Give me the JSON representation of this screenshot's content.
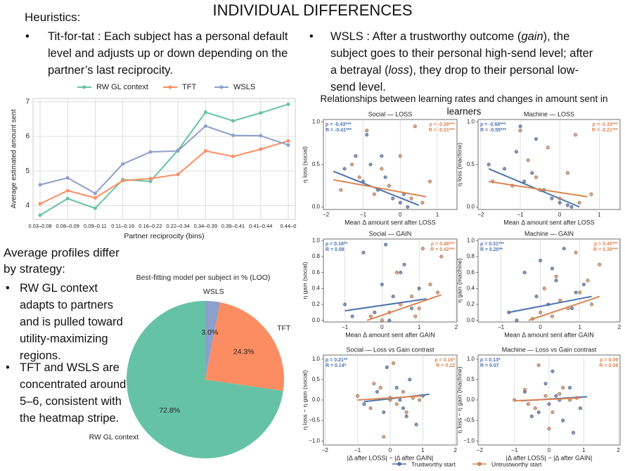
{
  "page_title": "INDIVIDUAL DIFFERENCES",
  "heuristics_label": "Heuristics:",
  "tft_text": "Tit-for-tat : Each subject has a personal default level and adjusts up or down depending on the partner’s last reciprocity.",
  "wsls_runs": [
    {
      "text": "WSLS : After a trustworthy outcome (",
      "italic": false
    },
    {
      "text": "gain",
      "italic": true
    },
    {
      "text": "), the subject goes to their personal high-send level; after a betrayal (",
      "italic": false
    },
    {
      "text": "loss",
      "italic": true
    },
    {
      "text": "), they drop to their personal low-send level.",
      "italic": false
    }
  ],
  "profiles_heading": "Average profiles differ by strategy:",
  "profile_bullets": [
    "RW GL context adapts to partners and is pulled toward utility-maximizing regions.",
    "TFT and WSLS are concentrated around 5–6, consistent with the heatmap stripe."
  ],
  "scatter_heading": "Relationships between learning rates and changes in amount sent in learners",
  "chart_data": [
    {
      "type": "line",
      "xlabel": "Partner reciprocity (bins)",
      "ylabel": "Average estimated amount sent",
      "categories": [
        "0.03–0.08",
        "0.08–0.09",
        "0.09–0.11",
        "0.11–0.16",
        "0.16–0.22",
        "0.22–0.34",
        "0.34–0.39",
        "0.39–0.41",
        "0.41–0.44",
        "0.44–0"
      ],
      "series": [
        {
          "name": "RW GL context",
          "color": "#66c2a5",
          "values": [
            3.72,
            4.2,
            3.92,
            4.75,
            4.7,
            5.6,
            6.7,
            6.45,
            6.68,
            6.93
          ]
        },
        {
          "name": "TFT",
          "color": "#fc8d62",
          "values": [
            4.05,
            4.43,
            4.22,
            4.72,
            4.78,
            4.9,
            5.58,
            5.42,
            5.63,
            5.87
          ]
        },
        {
          "name": "WSLS",
          "color": "#8da0cb",
          "values": [
            4.6,
            4.8,
            4.35,
            5.2,
            5.55,
            5.58,
            6.3,
            6.03,
            6.02,
            5.75
          ]
        }
      ],
      "ylim": [
        3.6,
        7.1
      ],
      "yticks": [
        4,
        5,
        6,
        7
      ],
      "grid": true
    },
    {
      "type": "pie",
      "title": "Best-fitting model per subject in % (LOO)",
      "categories": [
        "RW GL context",
        "TFT",
        "WSLS"
      ],
      "values": [
        72.8,
        24.3,
        3.0
      ],
      "value_labels": [
        "72.8%",
        "24.3%",
        "3.0%"
      ],
      "colors": [
        "#66c2a5",
        "#fc8d62",
        "#8da0cb"
      ],
      "startangle": 90
    },
    {
      "type": "scatter",
      "title": "Social — LOSS",
      "xlabel": "Mean Δ amount sent after LOSS",
      "ylabel": "η loss (social)",
      "xlim": [
        -2.07,
        1.53
      ],
      "xticks": [
        {
          "value": -2,
          "label": "−2"
        },
        {
          "value": -1,
          "label": "−1"
        },
        0,
        1
      ],
      "ylim": [
        -0.03,
        1.03
      ],
      "yticks": [
        {
          "value": 0,
          "label": "0.0"
        },
        0.5,
        {
          "value": 1,
          "label": "1.0"
        }
      ],
      "series": [
        {
          "name": "Trustworthy start",
          "color": "#4c72b0",
          "stats": [
            "ρ = -0.43***",
            "R = -0.41***"
          ],
          "x": [
            -1.5,
            -1.2,
            -1.0,
            -0.8,
            -0.6,
            -0.4,
            -0.2,
            0,
            0.2,
            -0.9,
            -0.5,
            0.1
          ],
          "y": [
            0.45,
            0.6,
            0.3,
            0.5,
            0.2,
            0.35,
            0.1,
            0.05,
            0.0,
            0.85,
            0.6,
            0.15
          ],
          "fit_x": [
            -1.8,
            0.5
          ],
          "fit_y": [
            0.42,
            0.02
          ]
        },
        {
          "name": "Untrustworthy start",
          "color": "#dd8452",
          "stats": [
            "ρ = -0.28***",
            "R = -0.21***"
          ],
          "x": [
            -1.6,
            -1.1,
            -0.9,
            -0.7,
            -0.3,
            0,
            0.3,
            0.6,
            -0.5,
            0.4,
            -1.3,
            0.8
          ],
          "y": [
            0.2,
            0.35,
            0.9,
            0.15,
            0.25,
            0.6,
            0.1,
            0.05,
            0.45,
            0.95,
            0.5,
            0.3
          ],
          "fit_x": [
            -1.8,
            0.7
          ],
          "fit_y": [
            0.32,
            0.12
          ]
        }
      ]
    },
    {
      "type": "scatter",
      "title": "Machine — LOSS",
      "xlabel": "Mean Δ amount sent after LOSS",
      "ylabel": "η loss (machine)",
      "xlim": [
        -2.07,
        1.53
      ],
      "xticks": [
        {
          "value": -2,
          "label": "−2"
        },
        {
          "value": -1,
          "label": "−1"
        },
        0,
        1
      ],
      "ylim": [
        -0.03,
        1.03
      ],
      "yticks": [
        {
          "value": 0,
          "label": "0.0"
        },
        0.5,
        {
          "value": 1,
          "label": "1.0"
        }
      ],
      "series": [
        {
          "name": "Trustworthy start",
          "color": "#4c72b0",
          "stats": [
            "ρ = -0.68***",
            "R = -0.55***"
          ],
          "x": [
            -1.8,
            -1.4,
            -1.1,
            -0.9,
            -0.6,
            -0.4,
            -0.2,
            0,
            0.2,
            -1.0,
            -0.7,
            0.3
          ],
          "y": [
            0.5,
            0.45,
            0.65,
            0.3,
            0.8,
            0.2,
            0.1,
            0.05,
            0.02,
            0.95,
            0.4,
            0.0
          ],
          "fit_x": [
            -1.8,
            0.5
          ],
          "fit_y": [
            0.45,
            0.0
          ]
        },
        {
          "name": "Untrustworthy start",
          "color": "#dd8452",
          "stats": [
            "ρ = -0.33***",
            "R = -0.21***"
          ],
          "x": [
            -1.7,
            -1.2,
            -0.8,
            -0.5,
            -0.3,
            0,
            0.2,
            0.5,
            -1.0,
            0.4,
            -0.6,
            0.8
          ],
          "y": [
            0.3,
            0.25,
            0.55,
            0.2,
            0.7,
            0.1,
            0.4,
            0.05,
            0.9,
            0.85,
            0.35,
            0.15
          ],
          "fit_x": [
            -1.8,
            0.7
          ],
          "fit_y": [
            0.3,
            0.12
          ]
        }
      ]
    },
    {
      "type": "scatter",
      "title": "Social — GAIN",
      "xlabel": "Mean Δ amount sent after GAIN",
      "ylabel": "η gain (social)",
      "xlim": [
        -1.58,
        2.02
      ],
      "xticks": [
        {
          "value": -1,
          "label": "−1"
        },
        0,
        1,
        2
      ],
      "ylim": [
        -0.02,
        1.02
      ],
      "yticks": [
        {
          "value": 0,
          "label": "0.0"
        },
        0.2,
        0.4,
        0.6,
        0.8,
        {
          "value": 1,
          "label": "1.0"
        }
      ],
      "series": [
        {
          "name": "Trustworthy start",
          "color": "#4c72b0",
          "stats": [
            "ρ = 0.18**",
            "R = 0.08"
          ],
          "x": [
            -1.0,
            -0.5,
            -0.2,
            0,
            0.1,
            0.3,
            0.5,
            0.8,
            1.0,
            -0.8,
            0.6,
            0.2
          ],
          "y": [
            0.2,
            0.85,
            0.1,
            0.45,
            0.95,
            0.3,
            0.6,
            0.15,
            0.4,
            0.05,
            0.7,
            0.0
          ],
          "fit_x": [
            -1.0,
            1.2
          ],
          "fit_y": [
            0.12,
            0.27
          ]
        },
        {
          "name": "Untrustworthy start",
          "color": "#dd8452",
          "stats": [
            "ρ = 0.48***",
            "R = 0.42***"
          ],
          "x": [
            -0.3,
            0,
            0.2,
            0.5,
            0.8,
            1.0,
            1.3,
            1.6,
            0.4,
            1.1,
            0.9,
            1.5
          ],
          "y": [
            0.05,
            0.0,
            0.1,
            0.2,
            0.3,
            0.15,
            0.45,
            0.8,
            0.6,
            0.9,
            0.05,
            0.35
          ],
          "fit_x": [
            -0.4,
            1.6
          ],
          "fit_y": [
            0.0,
            0.32
          ]
        }
      ]
    },
    {
      "type": "scatter",
      "title": "Machine — GAIN",
      "xlabel": "Mean Δ amount sent after GAIN",
      "ylabel": "η gain (machine)",
      "xlim": [
        -1.58,
        2.02
      ],
      "xticks": [
        {
          "value": -1,
          "label": "−1"
        },
        0,
        1,
        2
      ],
      "ylim": [
        -0.02,
        1.02
      ],
      "yticks": [
        {
          "value": 0,
          "label": "0.0"
        },
        0.2,
        0.4,
        0.6,
        0.8,
        {
          "value": 1,
          "label": "1.0"
        }
      ],
      "series": [
        {
          "name": "Trustworthy start",
          "color": "#4c72b0",
          "stats": [
            "ρ = 0.31***",
            "R = 0.20**"
          ],
          "x": [
            -0.8,
            -0.4,
            -0.1,
            0,
            0.2,
            0.4,
            0.6,
            0.9,
            1.1,
            -0.6,
            0.3,
            0.8
          ],
          "y": [
            0.1,
            0.6,
            0.3,
            0.75,
            0.2,
            0.5,
            0.9,
            0.35,
            0.45,
            0.0,
            0.65,
            0.15
          ],
          "fit_x": [
            -0.8,
            1.3
          ],
          "fit_y": [
            0.1,
            0.3
          ]
        },
        {
          "name": "Untrustworthy start",
          "color": "#dd8452",
          "stats": [
            "ρ = 0.45***",
            "R = 0.39***"
          ],
          "x": [
            -0.2,
            0,
            0.3,
            0.5,
            0.7,
            1.0,
            1.2,
            1.5,
            0.4,
            0.9,
            1.3,
            0.1
          ],
          "y": [
            0.02,
            0.1,
            0.05,
            0.25,
            0.15,
            0.35,
            0.5,
            0.7,
            0.55,
            0.85,
            0.2,
            0.4
          ],
          "fit_x": [
            -0.3,
            1.5
          ],
          "fit_y": [
            0.0,
            0.3
          ]
        }
      ]
    },
    {
      "type": "scatter",
      "title": "Social — Loss vs Gain contrast",
      "xlabel": "|Δ after LOSS| − |Δ after GAIN|",
      "ylabel": "η loss − η gain (social)",
      "xlim": [
        -2.05,
        2.05
      ],
      "xticks": [
        {
          "value": -2,
          "label": "−2"
        },
        {
          "value": -1,
          "label": "−1"
        },
        0,
        1,
        2
      ],
      "ylim": [
        -1.1,
        1.1
      ],
      "yticks": [
        {
          "value": -1,
          "label": "−1.0"
        },
        {
          "value": -0.5,
          "label": "−0.5"
        },
        {
          "value": 0,
          "label": "0.0"
        },
        0.5,
        {
          "value": 1,
          "label": "1.0"
        }
      ],
      "series": [
        {
          "name": "Trustworthy start",
          "color": "#4c72b0",
          "stats": [
            "ρ = 0.21**",
            "R = 0.14*"
          ],
          "x": [
            -0.8,
            -0.4,
            -0.2,
            0,
            0.2,
            0.4,
            0.6,
            0.8,
            1.0,
            -0.1,
            0.3,
            0.5
          ],
          "y": [
            -0.1,
            0.2,
            -0.3,
            0.05,
            0.3,
            -0.2,
            0.5,
            -0.6,
            0.1,
            0.8,
            0.0,
            -0.4
          ],
          "fit_x": [
            -0.8,
            1.2
          ],
          "fit_y": [
            -0.04,
            0.14
          ]
        },
        {
          "name": "Untrustworthy start",
          "color": "#dd8452",
          "stats": [
            "ρ = 0.16*",
            "R = 0.12"
          ],
          "x": [
            -1.0,
            -0.6,
            -0.3,
            0,
            0.2,
            0.4,
            0.7,
            -0.2,
            0.1,
            0.5,
            -0.5,
            0.9
          ],
          "y": [
            0.1,
            -0.2,
            0.3,
            0.0,
            -0.1,
            0.2,
            0.05,
            -0.9,
            0.9,
            -0.3,
            0.4,
            0.0
          ],
          "fit_x": [
            -1.0,
            1.0
          ],
          "fit_y": [
            0.0,
            0.1
          ]
        }
      ]
    },
    {
      "type": "scatter",
      "title": "Machine — Loss vs Gain contrast",
      "xlabel": "|Δ after LOSS| − |Δ after GAIN|",
      "ylabel": "η loss − η gain (machine)",
      "xlim": [
        -2.05,
        2.05
      ],
      "xticks": [
        {
          "value": -2,
          "label": "−2"
        },
        {
          "value": -1,
          "label": "−1"
        },
        0,
        1,
        2
      ],
      "ylim": [
        -1.1,
        1.1
      ],
      "yticks": [
        {
          "value": -1,
          "label": "−1.0"
        },
        {
          "value": -0.5,
          "label": "−0.5"
        },
        {
          "value": 0,
          "label": "0.0"
        },
        0.5,
        {
          "value": 1,
          "label": "1.0"
        }
      ],
      "series": [
        {
          "name": "Trustworthy start",
          "color": "#4c72b0",
          "stats": [
            "ρ = 0.13*",
            "R = 0.07"
          ],
          "x": [
            -0.7,
            -0.3,
            -0.1,
            0,
            0.2,
            0.4,
            0.6,
            0.9,
            -0.5,
            0.1,
            0.3,
            0.7
          ],
          "y": [
            0.2,
            -0.3,
            0.4,
            -0.1,
            0.1,
            -0.5,
            0.3,
            -0.2,
            -0.4,
            0.7,
            0.0,
            -0.8
          ],
          "fit_x": [
            -0.8,
            1.1
          ],
          "fit_y": [
            -0.02,
            0.08
          ]
        },
        {
          "name": "Untrustworthy start",
          "color": "#dd8452",
          "stats": [
            "ρ = 0.09",
            "R = 0.08"
          ],
          "x": [
            -1.0,
            -0.7,
            -0.4,
            -0.1,
            0.1,
            0.3,
            0.6,
            -0.3,
            0.0,
            0.4,
            -0.6,
            0.8
          ],
          "y": [
            0.0,
            0.25,
            -0.2,
            0.1,
            -0.3,
            0.15,
            0.0,
            0.85,
            -0.7,
            0.3,
            -0.1,
            0.05
          ],
          "fit_x": [
            -1.0,
            0.9
          ],
          "fit_y": [
            -0.02,
            0.05
          ]
        }
      ]
    }
  ]
}
